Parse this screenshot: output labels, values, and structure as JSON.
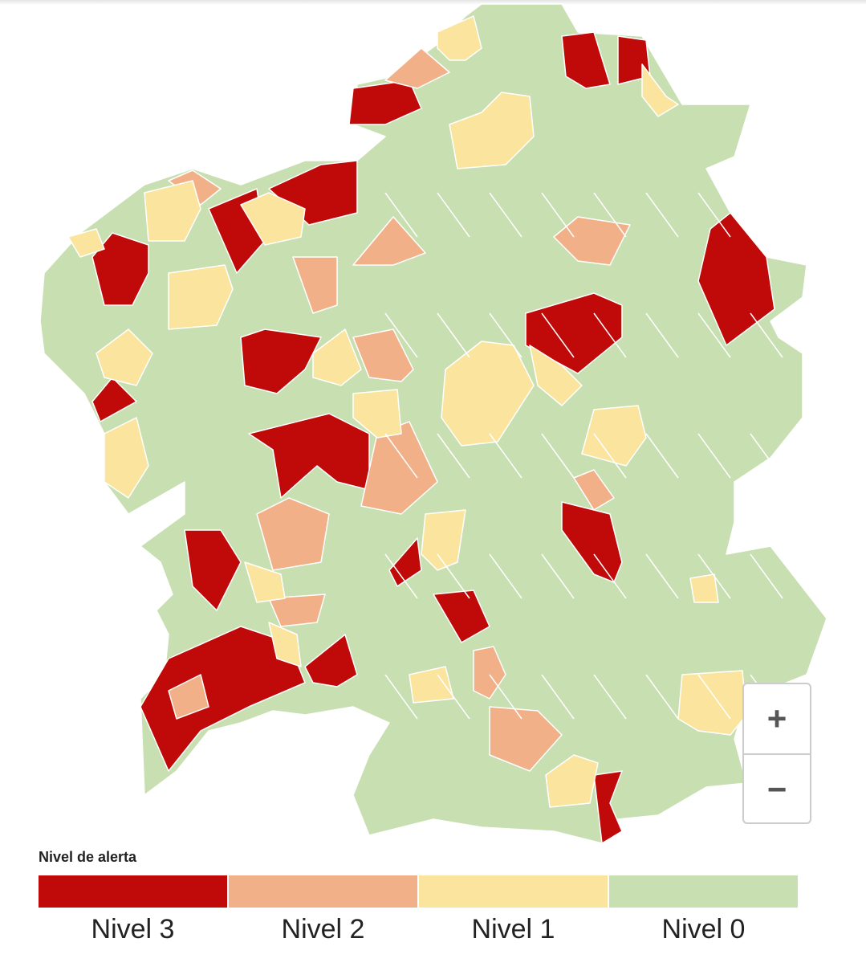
{
  "legend": {
    "title": "Nivel de alerta",
    "items": [
      {
        "label": "Nivel 3",
        "color": "#c00a0a"
      },
      {
        "label": "Nivel 2",
        "color": "#f2b089"
      },
      {
        "label": "Nivel 1",
        "color": "#fbe49d"
      },
      {
        "label": "Nivel 0",
        "color": "#c7dfb1"
      }
    ]
  },
  "zoom_controls": {
    "zoom_in": "+",
    "zoom_out": "−"
  }
}
